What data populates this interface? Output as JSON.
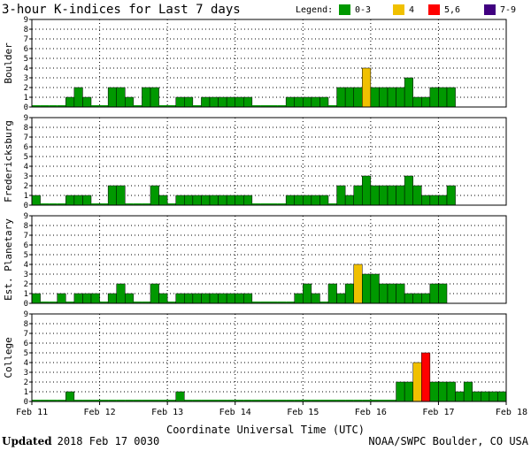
{
  "chart_data": {
    "type": "bar",
    "title": "3-hour K-indices for Last 7 days",
    "legend": {
      "title": "Legend:",
      "placement": "top-right",
      "items": [
        {
          "label": "0-3",
          "color": "#009900"
        },
        {
          "label": "4",
          "color": "#f0c000"
        },
        {
          "label": "5,6",
          "color": "#ff0000"
        },
        {
          "label": "7-9",
          "color": "#400080"
        }
      ]
    },
    "ylim": [
      0,
      9
    ],
    "yticks": [
      "0",
      "1",
      "2",
      "3",
      "4",
      "5",
      "6",
      "7",
      "8",
      "9"
    ],
    "grid": true,
    "xlabel": "Coordinate Universal Time (UTC)",
    "xticks": [
      "Feb 11",
      "Feb 12",
      "Feb 13",
      "Feb 14",
      "Feb 15",
      "Feb 16",
      "Feb 17",
      "Feb 18"
    ],
    "panels": [
      {
        "name": "Boulder",
        "values": [
          0,
          0,
          0,
          0,
          1,
          2,
          1,
          0,
          0,
          2,
          2,
          1,
          0,
          2,
          2,
          0,
          0,
          1,
          1,
          0,
          1,
          1,
          1,
          1,
          1,
          1,
          0,
          0,
          0,
          0,
          1,
          1,
          1,
          1,
          1,
          0,
          2,
          2,
          2,
          4,
          2,
          2,
          2,
          2,
          3,
          1,
          1,
          2,
          2,
          2
        ]
      },
      {
        "name": "Fredericksburg",
        "values": [
          1,
          0,
          0,
          0,
          1,
          1,
          1,
          0,
          0,
          2,
          2,
          0,
          0,
          0,
          2,
          1,
          0,
          1,
          1,
          1,
          1,
          1,
          1,
          1,
          1,
          1,
          0,
          0,
          0,
          0,
          1,
          1,
          1,
          1,
          1,
          0,
          2,
          1,
          2,
          3,
          2,
          2,
          2,
          2,
          3,
          2,
          1,
          1,
          1,
          2
        ]
      },
      {
        "name": "Est. Planetary",
        "values": [
          1,
          0,
          0,
          1,
          0,
          1,
          1,
          1,
          0,
          1,
          2,
          1,
          0,
          0,
          2,
          1,
          0,
          1,
          1,
          1,
          1,
          1,
          1,
          1,
          1,
          1,
          0,
          0,
          0,
          0,
          0,
          1,
          2,
          1,
          0,
          2,
          1,
          2,
          4,
          3,
          3,
          2,
          2,
          2,
          1,
          1,
          1,
          2,
          2
        ]
      },
      {
        "name": "College",
        "values": [
          0,
          0,
          0,
          0,
          1,
          0,
          0,
          0,
          0,
          0,
          0,
          0,
          0,
          0,
          0,
          0,
          0,
          1,
          0,
          0,
          0,
          0,
          0,
          0,
          0,
          0,
          0,
          0,
          0,
          0,
          0,
          0,
          0,
          0,
          0,
          0,
          0,
          0,
          0,
          0,
          0,
          0,
          0,
          2,
          2,
          4,
          5,
          2,
          2,
          2,
          1,
          2,
          1,
          1,
          1,
          1
        ]
      }
    ]
  },
  "footer": {
    "updated_label": "Updated",
    "updated_value": "2018 Feb 17 0030",
    "source": "NOAA/SWPC Boulder, CO USA"
  }
}
